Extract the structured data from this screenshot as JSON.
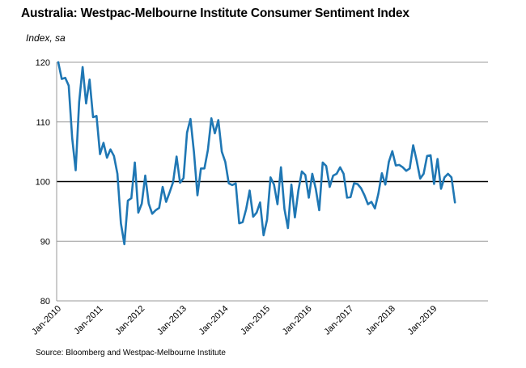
{
  "title": "Australia: Westpac-Melbourne Institute Consumer Sentiment Index",
  "subtitle": "Index, sa",
  "source": "Source: Bloomberg and Westpac-Melbourne Institute",
  "colors": {
    "line": "#1f77b4",
    "grid": "#999999",
    "baseline": "#000000"
  },
  "chart_data": {
    "type": "line",
    "title": "Australia: Westpac-Melbourne Institute Consumer Sentiment Index",
    "ylabel": "Index, sa",
    "xlabel": "",
    "ylim": [
      80,
      120
    ],
    "yticks": [
      80,
      90,
      100,
      110,
      120
    ],
    "reference_line": 100,
    "x_start": "Jan-2010",
    "x_tick_labels": [
      "Jan-2010",
      "Jan-2011",
      "Jan-2012",
      "Jan-2013",
      "Jan-2014",
      "Jan-2015",
      "Jan-2016",
      "Jan-2017",
      "Jan-2018",
      "Jan-2019"
    ],
    "series": [
      {
        "name": "Consumer Sentiment Index",
        "frequency": "monthly",
        "values": [
          120.0,
          117.2,
          117.4,
          116.1,
          107.3,
          101.9,
          113.3,
          119.2,
          113.1,
          117.1,
          110.8,
          111.0,
          104.6,
          106.5,
          104.0,
          105.4,
          104.3,
          101.3,
          93.0,
          89.5,
          96.8,
          97.2,
          103.2,
          94.8,
          96.3,
          101.0,
          96.3,
          94.6,
          95.2,
          95.6,
          99.1,
          96.6,
          98.2,
          99.9,
          104.2,
          99.8,
          100.6,
          108.2,
          110.5,
          104.9,
          97.7,
          102.2,
          102.2,
          105.3,
          110.6,
          108.1,
          110.3,
          105.0,
          103.3,
          99.7,
          99.4,
          99.7,
          93.0,
          93.2,
          95.4,
          98.5,
          94.1,
          94.8,
          96.5,
          91.0,
          93.6,
          100.7,
          99.5,
          96.2,
          102.4,
          95.4,
          92.2,
          99.5,
          94.0,
          98.5,
          101.7,
          101.1,
          97.3,
          101.3,
          98.8,
          95.2,
          103.2,
          102.6,
          99.1,
          101.0,
          101.3,
          102.4,
          101.3,
          97.3,
          97.4,
          99.7,
          99.6,
          98.9,
          97.7,
          96.2,
          96.6,
          95.5,
          98.0,
          101.4,
          99.5,
          103.3,
          105.1,
          102.7,
          102.8,
          102.4,
          101.8,
          102.2,
          106.1,
          103.5,
          100.5,
          101.3,
          104.3,
          104.4,
          99.6,
          103.8,
          98.8,
          100.7,
          101.3,
          100.7,
          96.5
        ]
      }
    ]
  }
}
